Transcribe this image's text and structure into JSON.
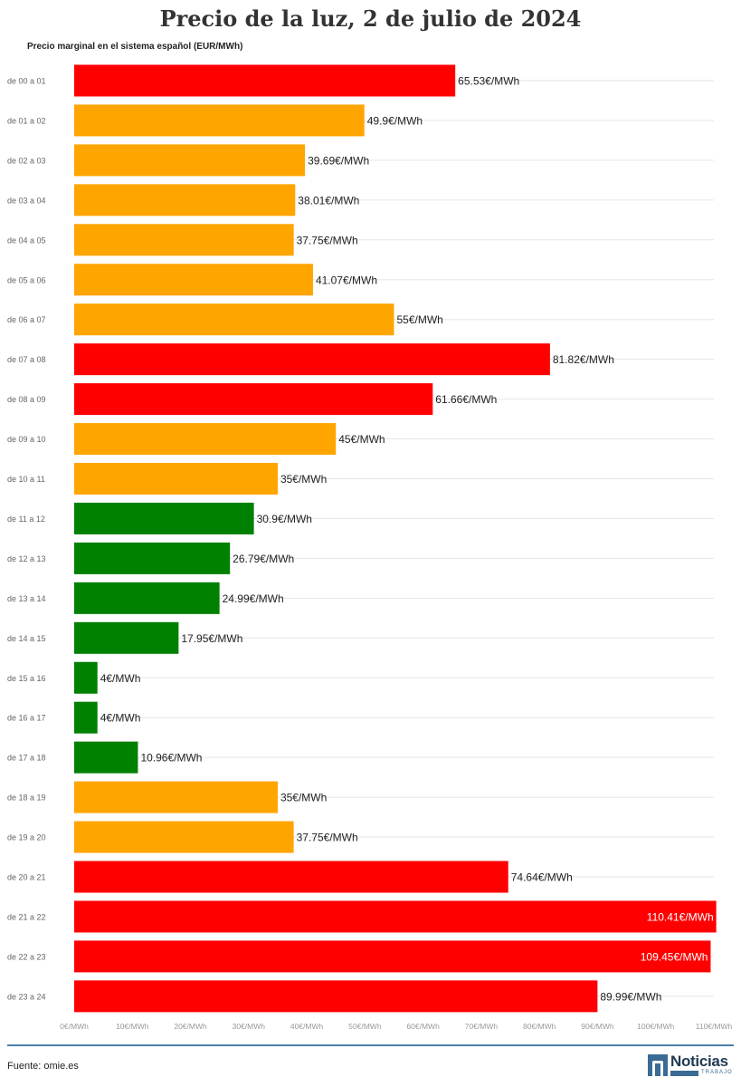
{
  "header": {
    "title": "Precio de la luz, 2 de julio de 2024",
    "subtitle": "Precio marginal en el sistema español (EUR/MWh)"
  },
  "footer": {
    "source": "Fuente: omie.es",
    "logo_main": "Noticias",
    "logo_sub": "TRABAJO"
  },
  "colors": {
    "high": "#ff0000",
    "medium": "#ffa500",
    "low": "#008000",
    "grid": "#e6e6e6",
    "tick_label": "#999999",
    "category_label": "#666666"
  },
  "chart_data": {
    "type": "bar",
    "orientation": "horizontal",
    "categories": [
      "de 00 a 01",
      "de 01 a 02",
      "de 02 a 03",
      "de 03 a 04",
      "de 04 a 05",
      "de 05 a 06",
      "de 06 a 07",
      "de 07 a 08",
      "de 08 a 09",
      "de 09 a 10",
      "de 10 a 11",
      "de 11 a 12",
      "de 12 a 13",
      "de 13 a 14",
      "de 14 a 15",
      "de 15 a 16",
      "de 16 a 17",
      "de 17 a 18",
      "de 18 a 19",
      "de 19 a 20",
      "de 20 a 21",
      "de 21 a 22",
      "de 22 a 23",
      "de 23 a 24"
    ],
    "values": [
      65.53,
      49.9,
      39.69,
      38.01,
      37.75,
      41.07,
      55,
      81.82,
      61.66,
      45,
      35,
      30.9,
      26.79,
      24.99,
      17.95,
      4,
      4,
      10.96,
      35,
      37.75,
      74.64,
      110.41,
      109.45,
      89.99
    ],
    "value_labels": [
      "65.53€/MWh",
      "49.9€/MWh",
      "39.69€/MWh",
      "38.01€/MWh",
      "37.75€/MWh",
      "41.07€/MWh",
      "55€/MWh",
      "81.82€/MWh",
      "61.66€/MWh",
      "45€/MWh",
      "35€/MWh",
      "30.9€/MWh",
      "26.79€/MWh",
      "24.99€/MWh",
      "17.95€/MWh",
      "4€/MWh",
      "4€/MWh",
      "10.96€/MWh",
      "35€/MWh",
      "37.75€/MWh",
      "74.64€/MWh",
      "110.41€/MWh",
      "109.45€/MWh",
      "89.99€/MWh"
    ],
    "levels": [
      "high",
      "medium",
      "medium",
      "medium",
      "medium",
      "medium",
      "medium",
      "high",
      "high",
      "medium",
      "medium",
      "low",
      "low",
      "low",
      "low",
      "low",
      "low",
      "low",
      "medium",
      "medium",
      "high",
      "high",
      "high",
      "high"
    ],
    "xlim": [
      0,
      110
    ],
    "x_ticks": [
      0,
      10,
      20,
      30,
      40,
      50,
      60,
      70,
      80,
      90,
      100,
      110
    ],
    "x_tick_labels": [
      "0€/MWh",
      "10€/MWh",
      "20€/MWh",
      "30€/MWh",
      "40€/MWh",
      "50€/MWh",
      "60€/MWh",
      "70€/MWh",
      "80€/MWh",
      "90€/MWh",
      "100€/MWh",
      "110€/MWh"
    ],
    "grid": true,
    "legend": "none"
  }
}
